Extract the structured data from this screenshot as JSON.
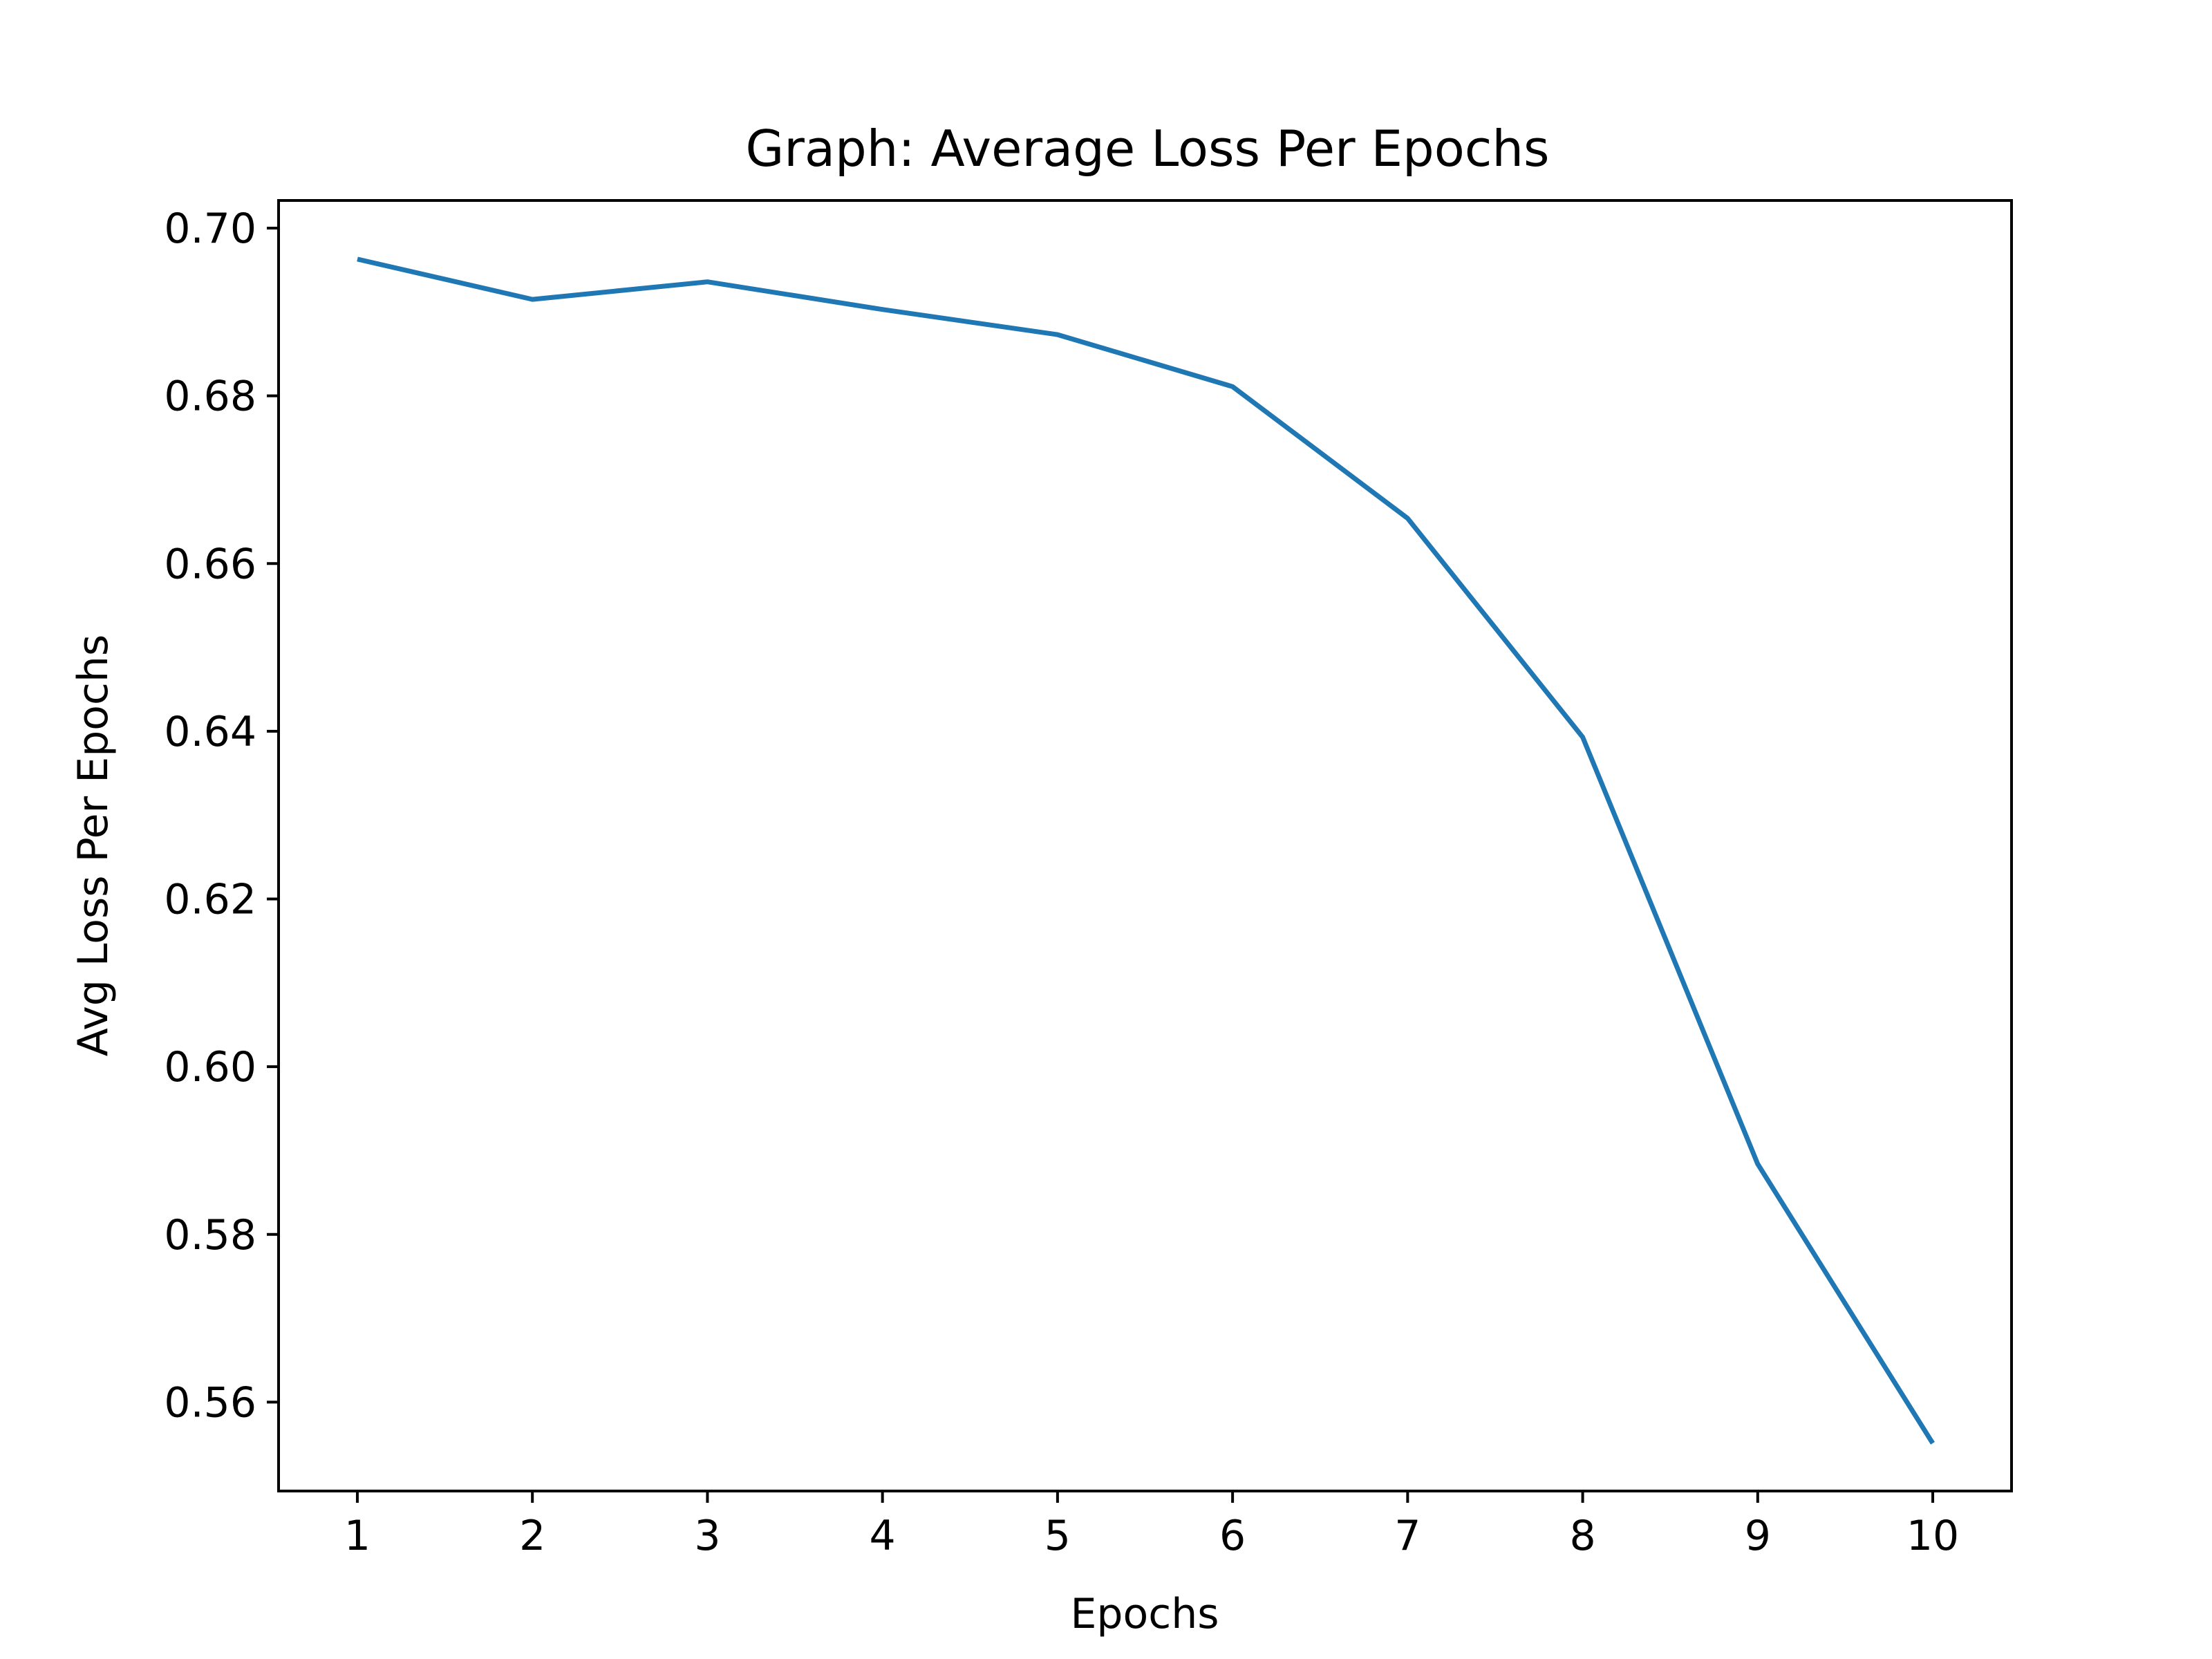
{
  "chart_data": {
    "type": "line",
    "title": "Graph: Average Loss Per Epochs",
    "xlabel": "Epochs",
    "ylabel": "Avg Loss Per Epochs",
    "x": [
      1,
      2,
      3,
      4,
      5,
      6,
      7,
      8,
      9,
      10
    ],
    "series": [
      {
        "values": [
          0.6963,
          0.6915,
          0.6936,
          0.6903,
          0.6873,
          0.6811,
          0.6654,
          0.6393,
          0.5884,
          0.5551
        ],
        "color": "#1f77b4"
      }
    ],
    "xlim": [
      0.55,
      10.45
    ],
    "ylim": [
      0.5494,
      0.7033
    ],
    "xticks": [
      1,
      2,
      3,
      4,
      5,
      6,
      7,
      8,
      9,
      10
    ],
    "xtick_labels": [
      "1",
      "2",
      "3",
      "4",
      "5",
      "6",
      "7",
      "8",
      "9",
      "10"
    ],
    "yticks": [
      0.56,
      0.58,
      0.6,
      0.62,
      0.64,
      0.66,
      0.68,
      0.7
    ],
    "ytick_labels": [
      "0.56",
      "0.58",
      "0.60",
      "0.62",
      "0.64",
      "0.66",
      "0.68",
      "0.70"
    ],
    "grid": false,
    "legend": "none"
  }
}
